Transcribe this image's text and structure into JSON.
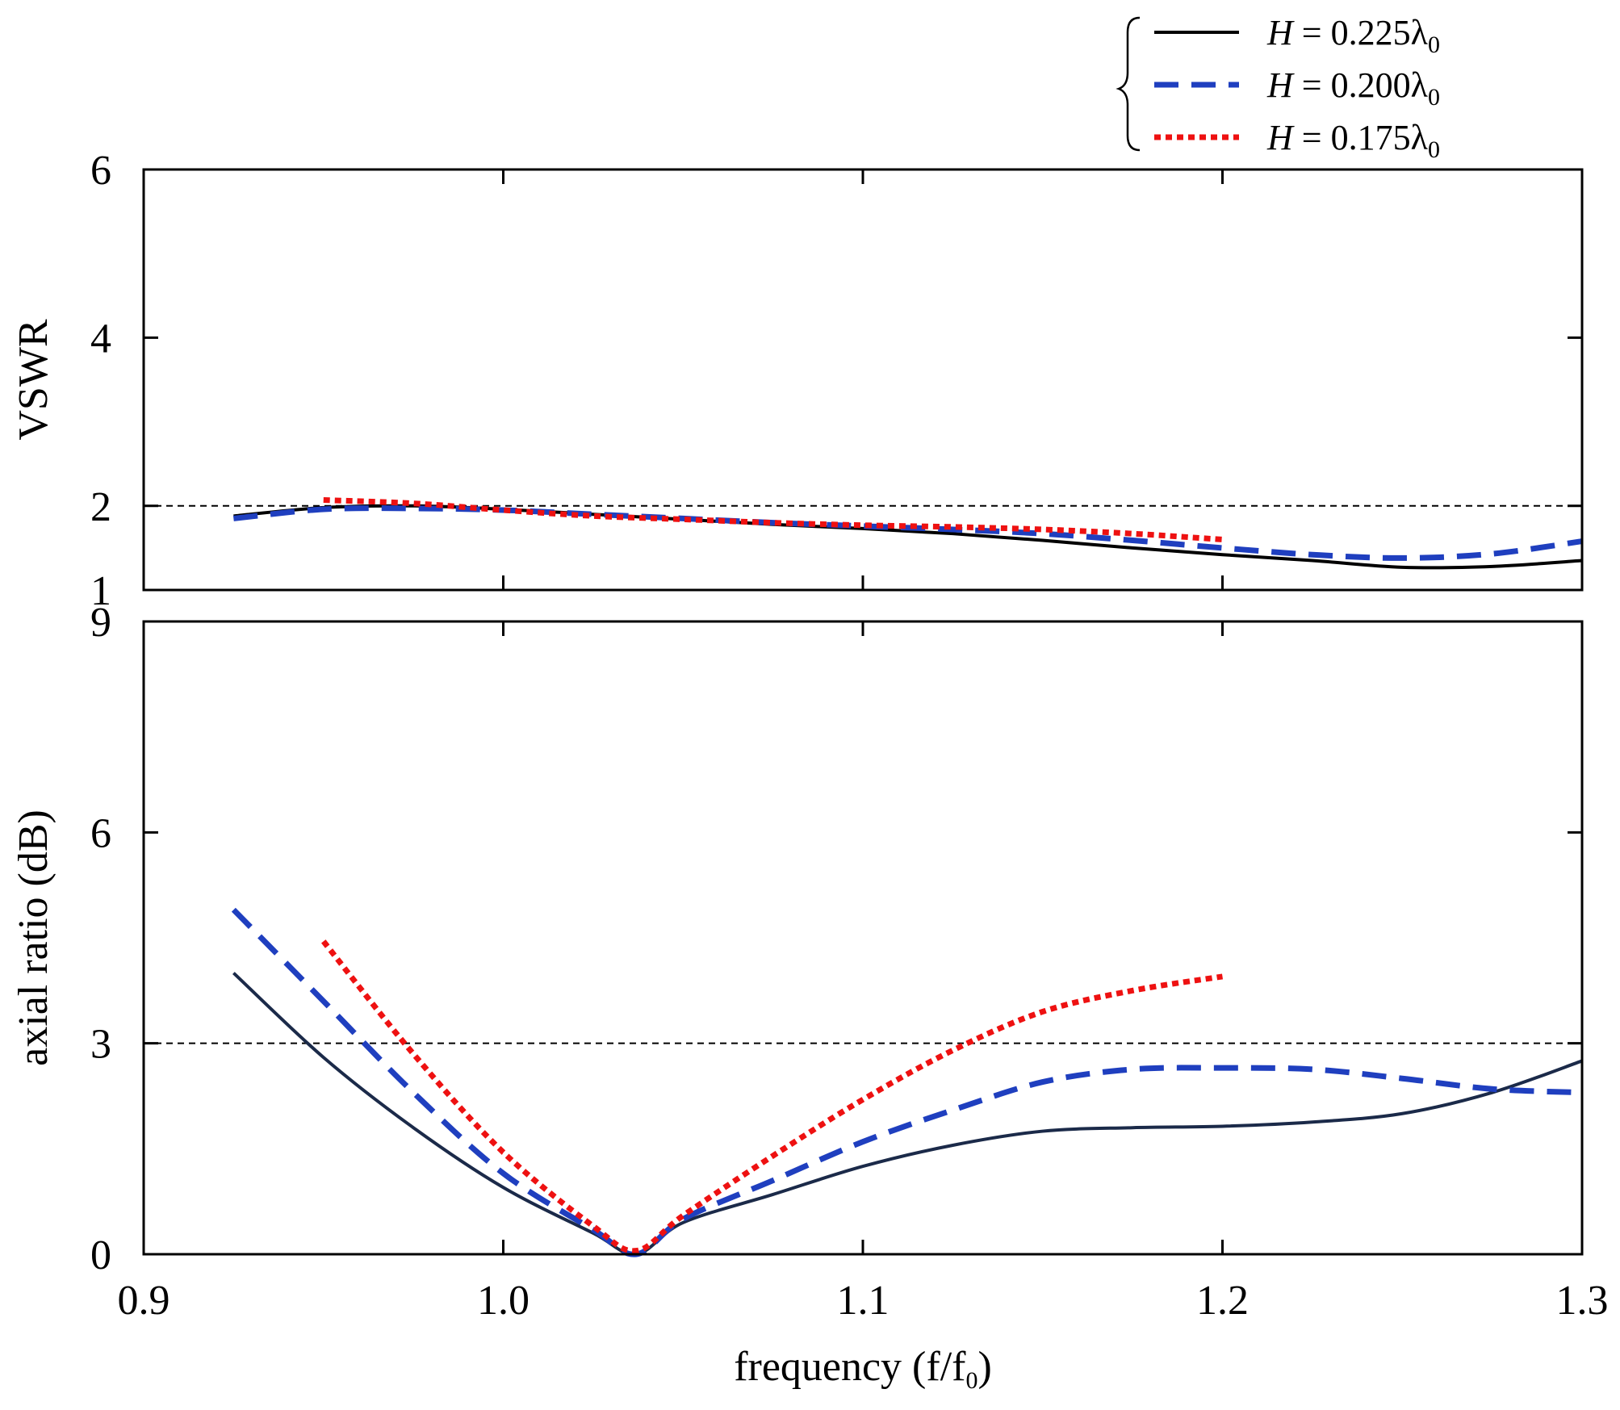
{
  "legend": {
    "entries": [
      {
        "var": "H",
        "eq": " = 0.225",
        "sym": "λ",
        "sub": "0",
        "style": "solid",
        "color": "#000000"
      },
      {
        "var": "H",
        "eq": " = 0.200",
        "sym": "λ",
        "sub": "0",
        "style": "dashed",
        "color": "#1f3fbf"
      },
      {
        "var": "H",
        "eq": " = 0.175",
        "sym": "λ",
        "sub": "0",
        "style": "dotted",
        "color": "#ee1111"
      }
    ]
  },
  "chart_data": [
    {
      "type": "line",
      "id": "vswr",
      "ylabel": "VSWR",
      "xlim": [
        0.9,
        1.3
      ],
      "ylim": [
        1,
        6
      ],
      "yticks": [
        "1",
        "2",
        "4",
        "6"
      ],
      "reference_line": 2,
      "series": [
        {
          "name": "H = 0.225λ0",
          "style": "solid",
          "color": "#000000",
          "x": [
            0.925,
            0.95,
            0.975,
            1.0,
            1.025,
            1.05,
            1.075,
            1.1,
            1.125,
            1.15,
            1.175,
            1.2,
            1.225,
            1.25,
            1.275,
            1.3
          ],
          "y": [
            1.88,
            1.98,
            2.0,
            1.96,
            1.9,
            1.84,
            1.78,
            1.73,
            1.67,
            1.59,
            1.5,
            1.42,
            1.35,
            1.27,
            1.28,
            1.35
          ]
        },
        {
          "name": "H = 0.200λ0",
          "style": "dashed",
          "color": "#1f3fbf",
          "x": [
            0.925,
            0.95,
            0.975,
            1.0,
            1.025,
            1.05,
            1.075,
            1.1,
            1.125,
            1.15,
            1.175,
            1.2,
            1.225,
            1.25,
            1.275,
            1.3
          ],
          "y": [
            1.85,
            1.96,
            1.97,
            1.95,
            1.9,
            1.85,
            1.8,
            1.76,
            1.72,
            1.67,
            1.59,
            1.5,
            1.42,
            1.38,
            1.43,
            1.58
          ]
        },
        {
          "name": "H = 0.175λ0",
          "style": "dotted",
          "color": "#ee1111",
          "x": [
            0.95,
            0.975,
            1.0,
            1.025,
            1.05,
            1.075,
            1.1,
            1.125,
            1.15,
            1.175,
            1.2
          ],
          "y": [
            2.07,
            2.03,
            1.95,
            1.88,
            1.84,
            1.8,
            1.77,
            1.75,
            1.72,
            1.67,
            1.6
          ]
        }
      ]
    },
    {
      "type": "line",
      "id": "axial_ratio",
      "xlabel": "frequency (f/f",
      "xlabel_sub": "0",
      "xlabel_end": ")",
      "ylabel": "axial ratio (dB)",
      "xlim": [
        0.9,
        1.3
      ],
      "ylim": [
        0,
        9
      ],
      "xticks": [
        "0.9",
        "1.0",
        "1.1",
        "1.2",
        "1.3"
      ],
      "yticks": [
        "0",
        "3",
        "6",
        "9"
      ],
      "reference_line": 3,
      "series": [
        {
          "name": "H = 0.225λ0",
          "style": "solid",
          "color": "#1b2a49",
          "x": [
            0.925,
            0.95,
            0.975,
            1.0,
            1.025,
            1.037,
            1.05,
            1.075,
            1.1,
            1.125,
            1.15,
            1.175,
            1.2,
            1.225,
            1.25,
            1.275,
            1.3
          ],
          "y": [
            4.0,
            2.8,
            1.8,
            0.95,
            0.3,
            0.0,
            0.45,
            0.85,
            1.25,
            1.55,
            1.75,
            1.8,
            1.82,
            1.88,
            2.0,
            2.3,
            2.75
          ]
        },
        {
          "name": "H = 0.200λ0",
          "style": "dashed",
          "color": "#1f3fbf",
          "x": [
            0.925,
            0.95,
            0.975,
            1.0,
            1.025,
            1.037,
            1.05,
            1.075,
            1.1,
            1.125,
            1.15,
            1.175,
            1.2,
            1.225,
            1.25,
            1.275,
            1.3
          ],
          "y": [
            4.9,
            3.6,
            2.3,
            1.15,
            0.35,
            0.0,
            0.5,
            1.05,
            1.6,
            2.05,
            2.45,
            2.63,
            2.65,
            2.63,
            2.5,
            2.35,
            2.3
          ]
        },
        {
          "name": "H = 0.175λ0",
          "style": "dotted",
          "color": "#ee1111",
          "x": [
            0.95,
            0.975,
            1.0,
            1.025,
            1.037,
            1.05,
            1.075,
            1.1,
            1.125,
            1.15,
            1.175,
            1.2
          ],
          "y": [
            4.45,
            2.85,
            1.45,
            0.4,
            0.05,
            0.55,
            1.4,
            2.2,
            2.9,
            3.45,
            3.75,
            3.95
          ]
        }
      ]
    }
  ]
}
